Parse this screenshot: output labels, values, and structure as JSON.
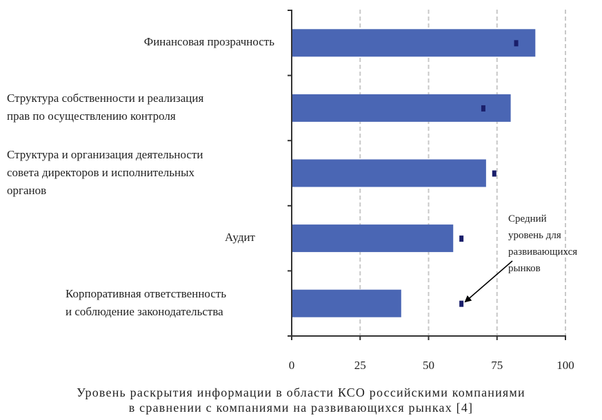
{
  "chart_data": {
    "type": "bar",
    "orientation": "horizontal",
    "categories": [
      [
        "Финансовая прозрачность"
      ],
      [
        "Структура собственности и реализация",
        "прав по осуществлению контроля"
      ],
      [
        "Структура и организация деятельности",
        "совета директоров и исполнительных",
        "органов"
      ],
      [
        "Аудит"
      ],
      [
        "Корпоративная ответственность",
        "и соблюдение законодательства"
      ]
    ],
    "series": [
      {
        "values": [
          89,
          80,
          71,
          59,
          40
        ],
        "color": "#4a66b4"
      },
      {
        "name": "Средний уровень для развивающихся рынков",
        "values": [
          82,
          70,
          74,
          62,
          62
        ],
        "color": "#1a1f6b",
        "marker": "square"
      }
    ],
    "xticks": [
      "0",
      "25",
      "50",
      "75",
      "100"
    ],
    "xlim": [
      0,
      100
    ],
    "grid": true,
    "annotation": [
      "Средний",
      "уровень для",
      "развивающихся",
      "рынков"
    ]
  },
  "caption": [
    "Уровень раскрытия информации в области КСО российскими компаниями",
    "в сравнении с компаниями на развивающихся рынках [4]"
  ]
}
